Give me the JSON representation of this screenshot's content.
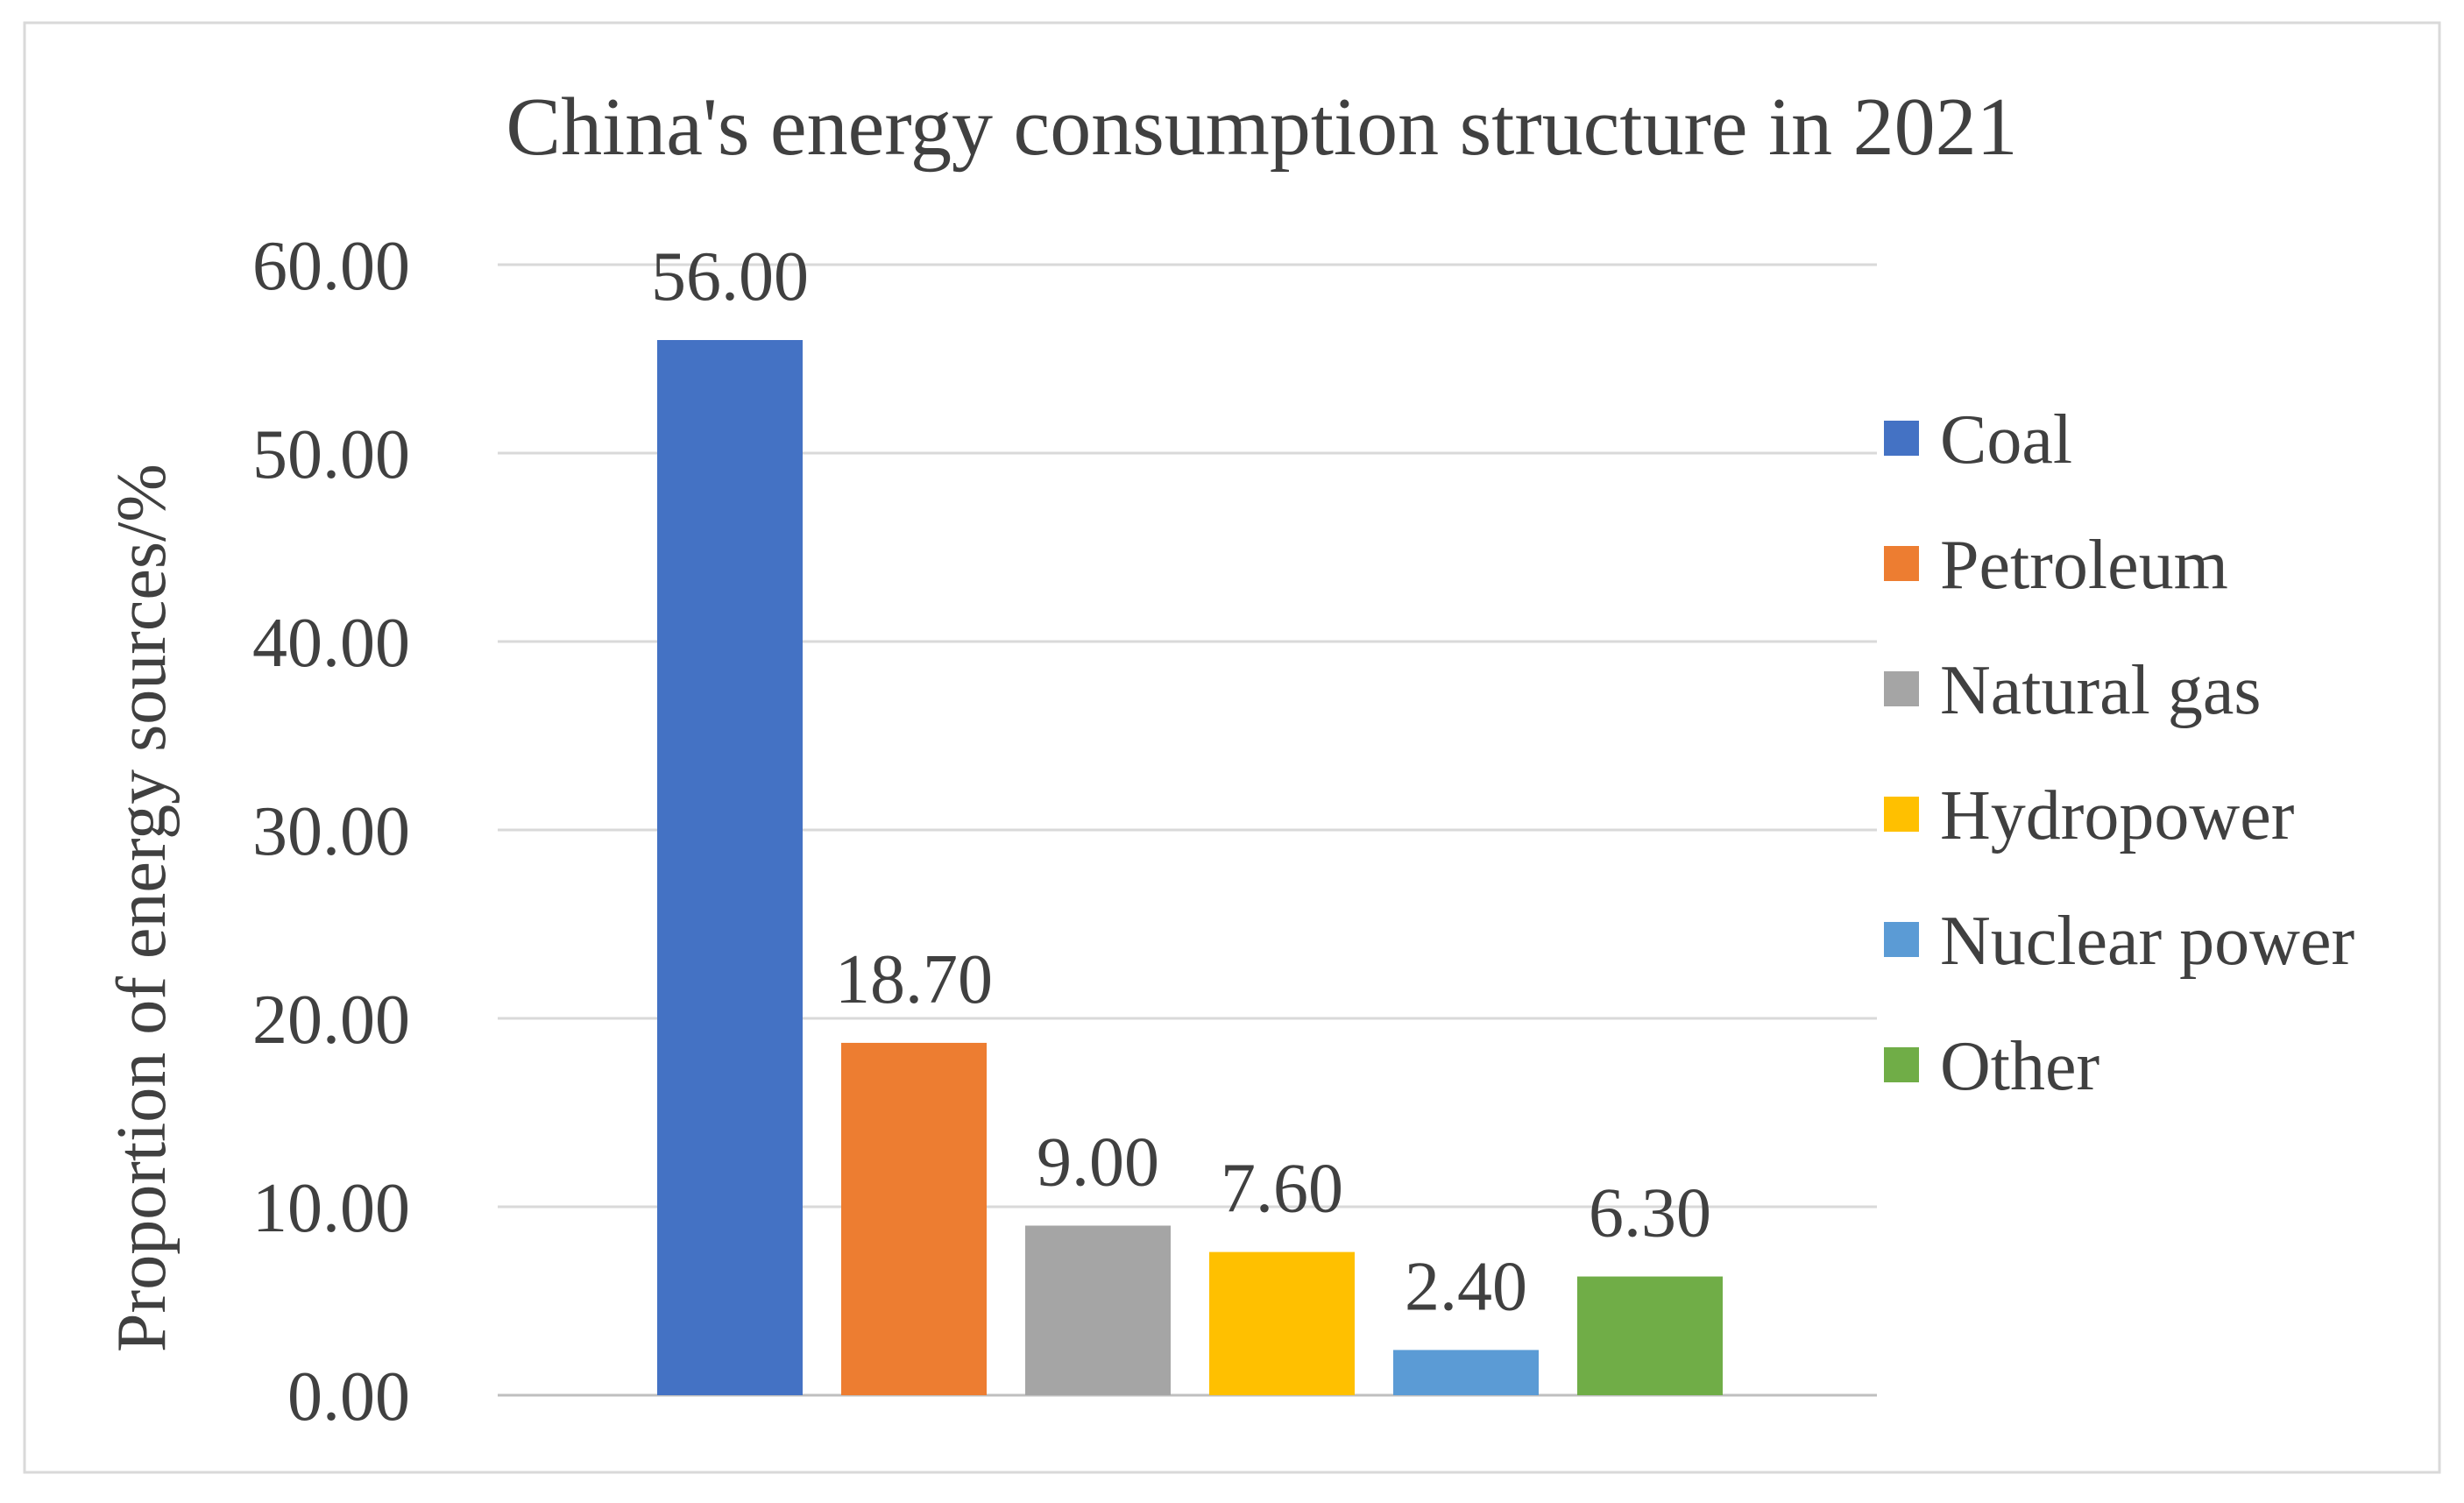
{
  "chart_data": {
    "type": "bar",
    "title": "China's energy consumption structure in 2021",
    "xlabel": "",
    "ylabel": "Proportion of energy sources/%",
    "ylim": [
      0,
      60
    ],
    "yticks": [
      0,
      10,
      20,
      30,
      40,
      50,
      60
    ],
    "ytick_labels": [
      "0.00",
      "10.00",
      "20.00",
      "30.00",
      "40.00",
      "50.00",
      "60.00"
    ],
    "grid": true,
    "legend_position": "right",
    "categories": [
      "Coal",
      "Petroleum",
      "Natural gas",
      "Hydropower",
      "Nuclear power",
      "Other"
    ],
    "values": [
      56.0,
      18.7,
      9.0,
      7.6,
      2.4,
      6.3
    ],
    "data_labels": [
      "56.00",
      "18.70",
      "9.00",
      "7.60",
      "2.40",
      "6.30"
    ],
    "colors": [
      "#4472C4",
      "#ED7D31",
      "#A5A5A5",
      "#FFC000",
      "#5B9BD5",
      "#70AD47"
    ]
  }
}
